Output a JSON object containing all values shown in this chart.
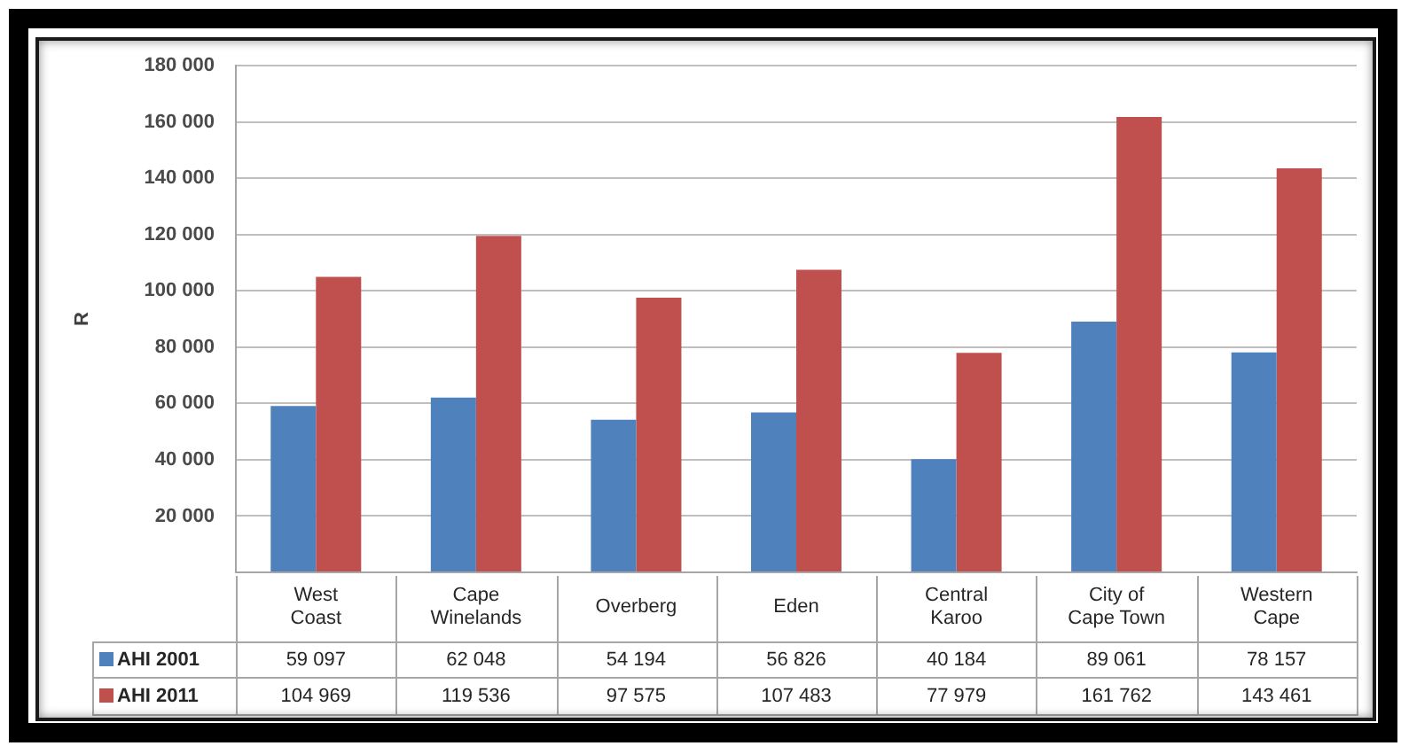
{
  "chart_data": {
    "type": "bar",
    "ylabel": "R",
    "categories": [
      "West Coast",
      "Cape Winelands",
      "Overberg",
      "Eden",
      "Central Karoo",
      "City of Cape Town",
      "Western Cape"
    ],
    "series": [
      {
        "name": "AHI 2001",
        "color": "#4f81bd",
        "values": [
          59097,
          62048,
          54194,
          56826,
          40184,
          89061,
          78157
        ],
        "value_labels": [
          "59 097",
          "62 048",
          "54 194",
          "56 826",
          "40 184",
          "89 061",
          "78 157"
        ]
      },
      {
        "name": "AHI 2011",
        "color": "#c0504d",
        "values": [
          104969,
          119536,
          97575,
          107483,
          77979,
          161762,
          143461
        ],
        "value_labels": [
          "104 969",
          "119 536",
          "97 575",
          "107 483",
          "77 979",
          "161 762",
          "143 461"
        ]
      }
    ],
    "ylim": [
      0,
      180000
    ],
    "yticks": [
      {
        "value": 0,
        "label": null
      },
      {
        "value": 20000,
        "label": "20 000"
      },
      {
        "value": 40000,
        "label": "40 000"
      },
      {
        "value": 60000,
        "label": "60 000"
      },
      {
        "value": 80000,
        "label": "80 000"
      },
      {
        "value": 100000,
        "label": "100 000"
      },
      {
        "value": 120000,
        "label": "120 000"
      },
      {
        "value": 140000,
        "label": "140 000"
      },
      {
        "value": 160000,
        "label": "160 000"
      },
      {
        "value": 180000,
        "label": "180 000"
      }
    ],
    "grid": "y",
    "legend": "bottom left"
  }
}
